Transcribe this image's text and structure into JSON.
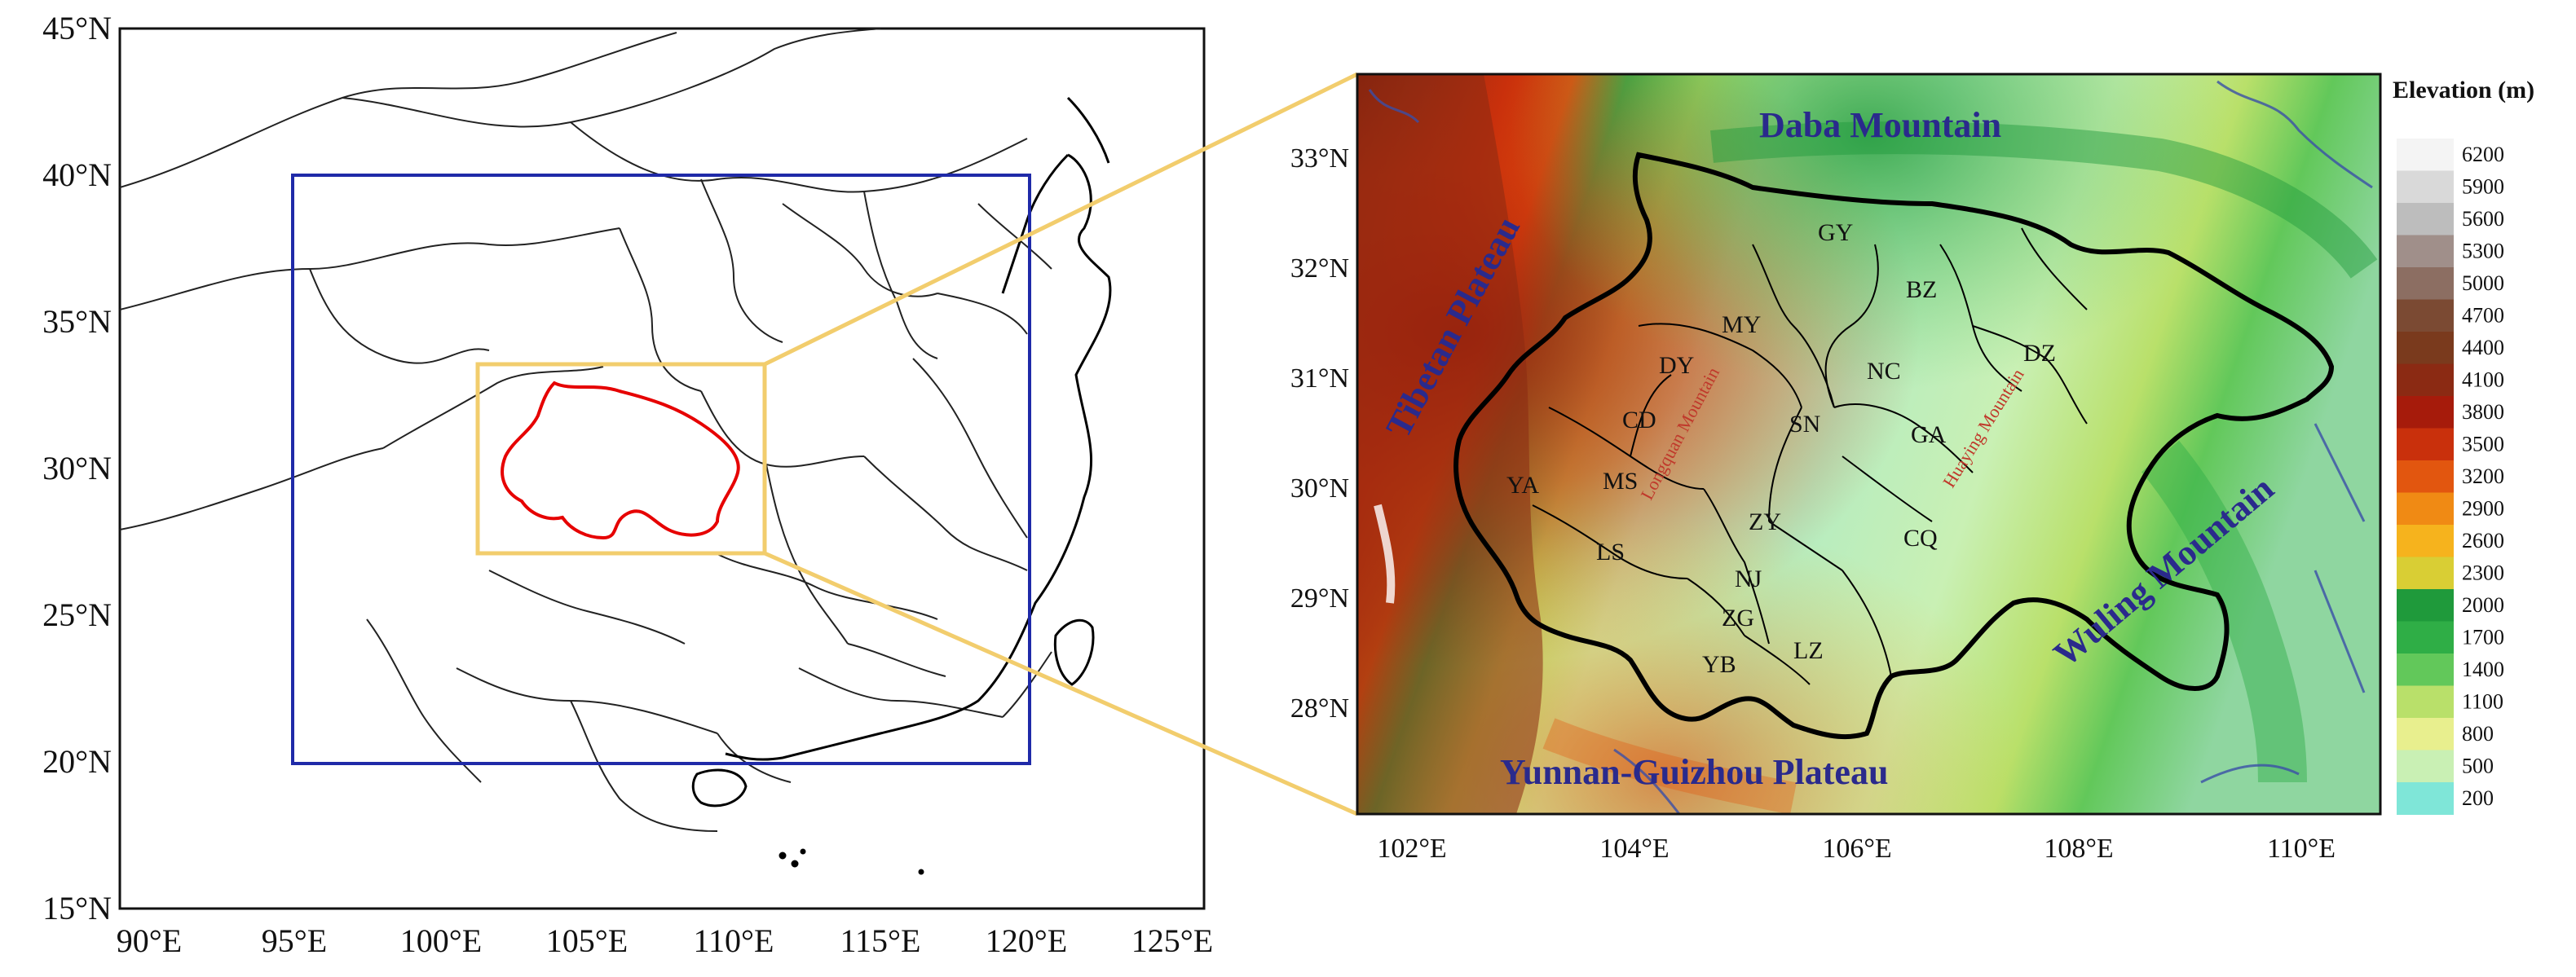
{
  "left_map": {
    "lat_ticks": [
      "45°N",
      "40°N",
      "35°N",
      "30°N",
      "25°N",
      "20°N",
      "15°N"
    ],
    "lon_ticks": [
      "90°E",
      "95°E",
      "100°E",
      "105°E",
      "110°E",
      "115°E",
      "120°E",
      "125°E"
    ]
  },
  "right_map": {
    "lat_ticks": [
      "33°N",
      "32°N",
      "31°N",
      "30°N",
      "29°N",
      "28°N"
    ],
    "lon_ticks": [
      "102°E",
      "104°E",
      "106°E",
      "108°E",
      "110°E"
    ],
    "terrain_labels": {
      "daba": "Daba Mountain",
      "tibetan": "Tibetan Plateau",
      "wuling": "Wuling Mountain",
      "yungui": "Yunnan-Guizhou Plateau",
      "longquan": "Longquan Mountain",
      "huaying": "Huaying Mountain"
    },
    "cities": {
      "GY": "GY",
      "BZ": "BZ",
      "MY": "MY",
      "DY": "DY",
      "NC": "NC",
      "DZ": "DZ",
      "CD": "CD",
      "SN": "SN",
      "GA": "GA",
      "YA": "YA",
      "MS": "MS",
      "ZY": "ZY",
      "CQ": "CQ",
      "NJ": "NJ",
      "LS": "LS",
      "ZG": "ZG",
      "YB": "YB",
      "LZ": "LZ"
    }
  },
  "legend": {
    "title": "Elevation (m)",
    "levels": [
      "6200",
      "5900",
      "5600",
      "5300",
      "5000",
      "4700",
      "4400",
      "4100",
      "3800",
      "3500",
      "3200",
      "2900",
      "2600",
      "2300",
      "2000",
      "1700",
      "1400",
      "1100",
      "800",
      "500",
      "200"
    ],
    "colors": [
      "#f4f4f4",
      "#d9d9d9",
      "#bdbdbd",
      "#a08f8a",
      "#8c6e62",
      "#7b4a33",
      "#7a3a1d",
      "#8b2a13",
      "#a61b0b",
      "#c9300c",
      "#e2560f",
      "#f08a14",
      "#f6b31d",
      "#d9ce34",
      "#1f9a3b",
      "#2fae46",
      "#62c85a",
      "#b9e06a",
      "#e8ef8e",
      "#c9f0b4",
      "#7fe6d8"
    ]
  },
  "colors": {
    "left_frame_box": "#1f2aa8",
    "study_box": "#f2cd6d",
    "study_outline": "#e60000",
    "zoom_lines": "#f2cd6d"
  }
}
